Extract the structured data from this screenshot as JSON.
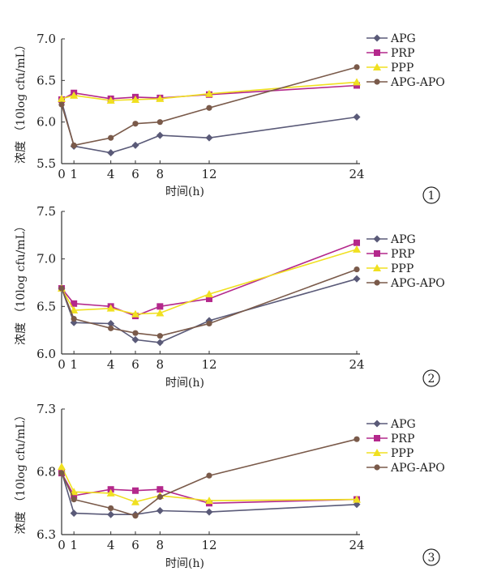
{
  "series_styles": [
    {
      "name": "APG",
      "color": "#5a5a78",
      "marker": "diamond"
    },
    {
      "name": "PRP",
      "color": "#b4288c",
      "marker": "square"
    },
    {
      "name": "PPP",
      "color": "#f0e020",
      "marker": "triangle"
    },
    {
      "name": "APG-APO",
      "color": "#7a5a4a",
      "marker": "circle"
    }
  ],
  "chart_data": [
    {
      "type": "line",
      "panel_label": "1",
      "xlabel": "时间(h)",
      "ylabel": "浓度 （10log cfu/mL）",
      "xticks": [
        0,
        1,
        4,
        6,
        8,
        12,
        24
      ],
      "ylim": [
        5.5,
        7.0
      ],
      "yticks": [
        "5.5",
        "6.0",
        "6.5",
        "7.0"
      ],
      "legend_position": "top-right",
      "legend": [
        "APG",
        "PRP",
        "PPP",
        "APG-APO"
      ],
      "x": [
        0,
        1,
        4,
        6,
        8,
        12,
        24
      ],
      "series": [
        {
          "name": "APG",
          "values": [
            6.25,
            5.71,
            5.63,
            5.72,
            5.84,
            5.81,
            6.06
          ]
        },
        {
          "name": "PRP",
          "values": [
            6.27,
            6.35,
            6.28,
            6.3,
            6.29,
            6.33,
            6.44
          ]
        },
        {
          "name": "PPP",
          "values": [
            6.28,
            6.32,
            6.26,
            6.27,
            6.28,
            6.34,
            6.48
          ]
        },
        {
          "name": "APG-APO",
          "values": [
            6.21,
            5.72,
            5.81,
            5.98,
            6.0,
            6.17,
            6.66
          ]
        }
      ]
    },
    {
      "type": "line",
      "panel_label": "2",
      "xlabel": "时间(h)",
      "ylabel": "浓度 （10log cfu/mL）",
      "xticks": [
        0,
        1,
        4,
        6,
        8,
        12,
        24
      ],
      "ylim": [
        6.0,
        7.5
      ],
      "yticks": [
        "6.0",
        "6.5",
        "7.0",
        "7.5"
      ],
      "legend_position": "right",
      "legend": [
        "APG",
        "PRP",
        "PPP",
        "APG-APO"
      ],
      "x": [
        0,
        1,
        4,
        6,
        8,
        12,
        24
      ],
      "series": [
        {
          "name": "APG",
          "values": [
            6.69,
            6.33,
            6.32,
            6.15,
            6.12,
            6.35,
            6.79
          ]
        },
        {
          "name": "PRP",
          "values": [
            6.69,
            6.53,
            6.5,
            6.4,
            6.5,
            6.58,
            7.17
          ]
        },
        {
          "name": "PPP",
          "values": [
            6.69,
            6.46,
            6.48,
            6.42,
            6.43,
            6.63,
            7.1
          ]
        },
        {
          "name": "APG-APO",
          "values": [
            6.69,
            6.37,
            6.27,
            6.22,
            6.19,
            6.32,
            6.89
          ]
        }
      ]
    },
    {
      "type": "line",
      "panel_label": "3",
      "xlabel": "时间(h)",
      "ylabel": "浓度 （10log cfu/mL）",
      "xticks": [
        0,
        1,
        4,
        6,
        8,
        12,
        24
      ],
      "ylim": [
        6.3,
        7.3
      ],
      "yticks": [
        "6.3",
        "6.8",
        "7.3"
      ],
      "legend_position": "right",
      "legend": [
        "APG",
        "PRP",
        "PPP",
        "APG-APO"
      ],
      "x": [
        0,
        1,
        4,
        6,
        8,
        12,
        24
      ],
      "series": [
        {
          "name": "APG",
          "values": [
            6.8,
            6.47,
            6.46,
            6.46,
            6.49,
            6.48,
            6.54
          ]
        },
        {
          "name": "PRP",
          "values": [
            6.79,
            6.61,
            6.66,
            6.65,
            6.66,
            6.55,
            6.58
          ]
        },
        {
          "name": "PPP",
          "values": [
            6.84,
            6.64,
            6.63,
            6.56,
            6.61,
            6.57,
            6.58
          ]
        },
        {
          "name": "APG-APO",
          "values": [
            6.79,
            6.58,
            6.51,
            6.45,
            6.6,
            6.77,
            7.06
          ]
        }
      ]
    }
  ]
}
